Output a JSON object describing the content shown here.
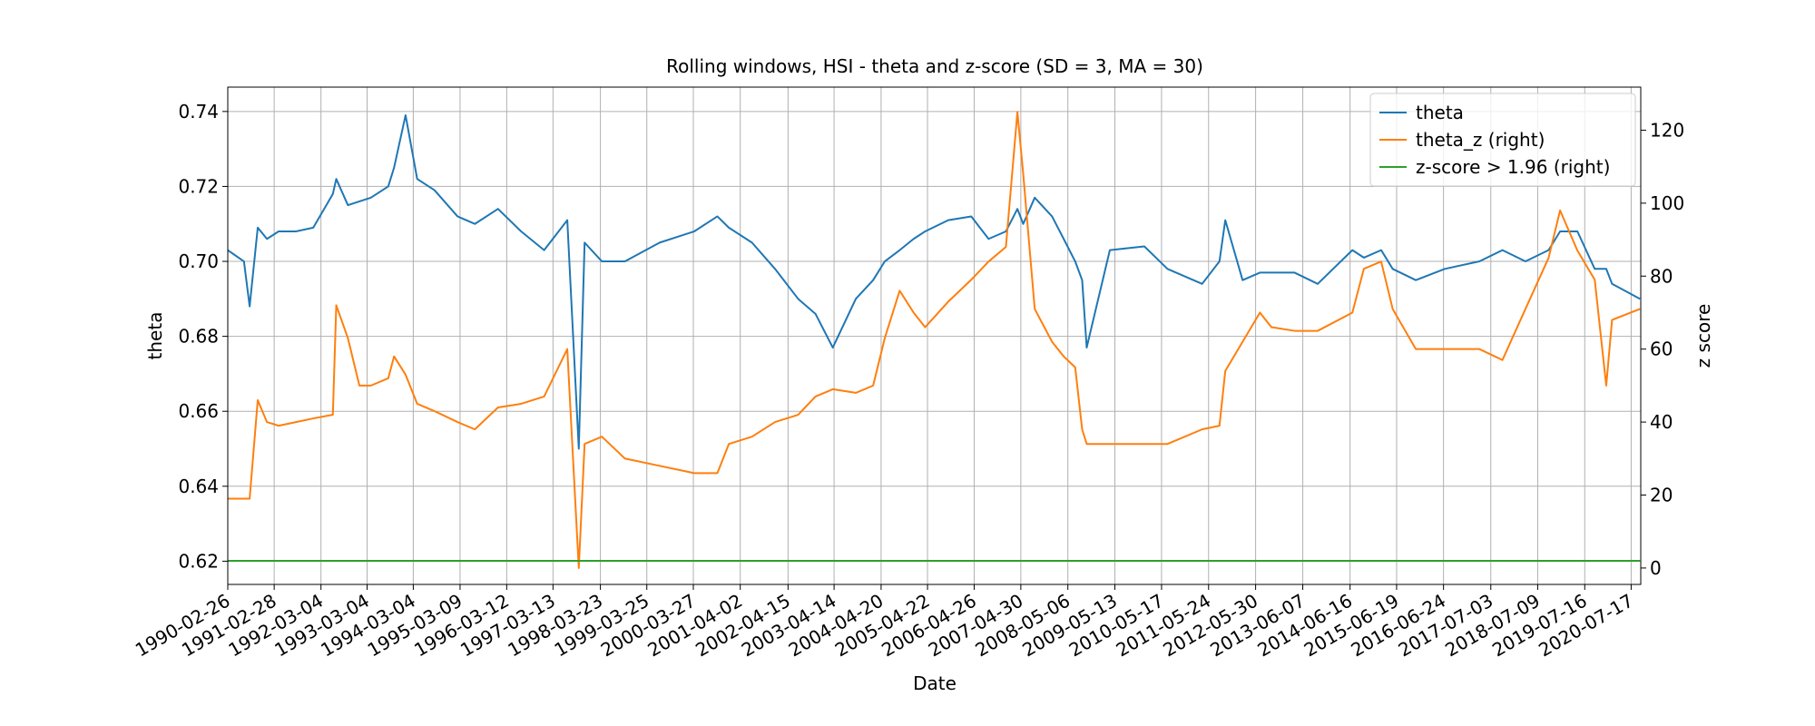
{
  "chart_data": {
    "type": "line",
    "title": "Rolling windows, HSI - theta and z-score (SD = 3, MA = 30)",
    "x_label": "Date",
    "y_label": "theta",
    "y2_label": "z score",
    "x": [
      "1990-02-26",
      "1990-07-04",
      "1990-08-18",
      "1990-10-21",
      "1991-01-02",
      "1991-04-04",
      "1991-08-19",
      "1992-01-03",
      "1992-06-06",
      "1992-07-03",
      "1992-10-03",
      "1993-01-02",
      "1993-04-03",
      "1993-08-18",
      "1993-10-03",
      "1994-01-02",
      "1994-04-04",
      "1994-08-19",
      "1995-02-17",
      "1995-07-04",
      "1996-01-03",
      "1996-07-04",
      "1997-01-02",
      "1997-07-04",
      "1997-10-03",
      "1997-11-18",
      "1998-04-04",
      "1998-10-03",
      "1999-07-04",
      "2000-04-03",
      "2000-10-03",
      "2001-01-02",
      "2001-07-04",
      "2002-01-02",
      "2002-07-04",
      "2002-11-18",
      "2003-04-04",
      "2003-10-03",
      "2004-02-17",
      "2004-05-19",
      "2004-09-14",
      "2005-01-02",
      "2005-04-03",
      "2005-10-03",
      "2006-04-03",
      "2006-08-18",
      "2007-01-02",
      "2007-04-03",
      "2007-05-19",
      "2007-08-18",
      "2008-01-02",
      "2008-04-03",
      "2008-07-03",
      "2008-08-27",
      "2008-10-02",
      "2009-04-03",
      "2010-01-01",
      "2010-07-03",
      "2011-04-03",
      "2011-08-18",
      "2011-10-03",
      "2012-02-17",
      "2012-07-03",
      "2012-10-02",
      "2013-04-03",
      "2013-10-03",
      "2014-07-04",
      "2014-10-03",
      "2015-02-17",
      "2015-05-19",
      "2015-11-18",
      "2016-07-04",
      "2017-04-04",
      "2017-10-03",
      "2018-04-03",
      "2018-10-03",
      "2019-01-02",
      "2019-05-19",
      "2019-10-03",
      "2020-01-02",
      "2020-02-17",
      "2020-09-25"
    ],
    "series": [
      {
        "name": "theta",
        "color": "#1f77b4",
        "axis": "y",
        "values": [
          0.703,
          0.7,
          0.688,
          0.709,
          0.706,
          0.708,
          0.708,
          0.709,
          0.718,
          0.722,
          0.715,
          0.716,
          0.717,
          0.72,
          0.725,
          0.739,
          0.722,
          0.719,
          0.712,
          0.71,
          0.714,
          0.708,
          0.703,
          0.711,
          0.65,
          0.705,
          0.7,
          0.7,
          0.705,
          0.708,
          0.712,
          0.709,
          0.705,
          0.698,
          0.69,
          0.686,
          0.677,
          0.69,
          0.695,
          0.7,
          0.703,
          0.706,
          0.708,
          0.711,
          0.712,
          0.706,
          0.708,
          0.714,
          0.71,
          0.717,
          0.712,
          0.706,
          0.7,
          0.695,
          0.677,
          0.703,
          0.704,
          0.698,
          0.694,
          0.7,
          0.711,
          0.695,
          0.697,
          0.697,
          0.697,
          0.694,
          0.703,
          0.701,
          0.703,
          0.698,
          0.695,
          0.698,
          0.7,
          0.703,
          0.7,
          0.703,
          0.708,
          0.708,
          0.698,
          0.698,
          0.694,
          0.69
        ]
      },
      {
        "name": "theta_z (right)",
        "color": "#ff7f0e",
        "axis": "y2",
        "values": [
          19,
          19,
          19,
          46,
          40,
          39,
          40,
          41,
          42,
          72,
          63,
          50,
          50,
          52,
          58,
          53,
          45,
          43,
          40,
          38,
          44,
          45,
          47,
          60,
          0,
          34,
          36,
          30,
          28,
          26,
          26,
          34,
          36,
          40,
          42,
          47,
          49,
          48,
          50,
          63,
          76,
          70,
          66,
          73,
          79,
          84,
          88,
          125,
          108,
          71,
          62,
          58,
          55,
          38,
          34,
          34,
          34,
          34,
          38,
          39,
          54,
          62,
          70,
          66,
          65,
          65,
          70,
          82,
          84,
          71,
          60,
          60,
          60,
          57,
          71,
          85,
          98,
          87,
          79,
          50,
          68,
          71
        ]
      },
      {
        "name": "z-score > 1.96 (right)",
        "color": "#2ca02c",
        "axis": "y2",
        "values": [
          1.96,
          1.96,
          1.96,
          1.96,
          1.96,
          1.96,
          1.96,
          1.96,
          1.96,
          1.96,
          1.96,
          1.96,
          1.96,
          1.96,
          1.96,
          1.96,
          1.96,
          1.96,
          1.96,
          1.96,
          1.96,
          1.96,
          1.96,
          1.96,
          1.96,
          1.96,
          1.96,
          1.96,
          1.96,
          1.96,
          1.96,
          1.96,
          1.96,
          1.96,
          1.96,
          1.96,
          1.96,
          1.96,
          1.96,
          1.96,
          1.96,
          1.96,
          1.96,
          1.96,
          1.96,
          1.96,
          1.96,
          1.96,
          1.96,
          1.96,
          1.96,
          1.96,
          1.96,
          1.96,
          1.96,
          1.96,
          1.96,
          1.96,
          1.96,
          1.96,
          1.96,
          1.96,
          1.96,
          1.96,
          1.96,
          1.96,
          1.96,
          1.96,
          1.96,
          1.96,
          1.96,
          1.96,
          1.96,
          1.96,
          1.96,
          1.96,
          1.96,
          1.96,
          1.96,
          1.96,
          1.96,
          1.96
        ]
      }
    ],
    "xlim": [
      "1990-02-26",
      "2020-10-01"
    ],
    "xticks": [
      "1990-02-26",
      "1991-02-28",
      "1992-03-04",
      "1993-03-04",
      "1994-03-04",
      "1995-03-09",
      "1996-03-12",
      "1997-03-13",
      "1998-03-23",
      "1999-03-25",
      "2000-03-27",
      "2001-04-02",
      "2002-04-15",
      "2003-04-14",
      "2004-04-20",
      "2005-04-22",
      "2006-04-26",
      "2007-04-30",
      "2008-05-06",
      "2009-05-13",
      "2010-05-17",
      "2011-05-24",
      "2012-05-30",
      "2013-06-07",
      "2014-06-16",
      "2015-06-19",
      "2016-06-24",
      "2017-07-03",
      "2018-07-09",
      "2019-07-16",
      "2020-07-17"
    ],
    "ylim": [
      0.6138,
      0.7465
    ],
    "yticks": [
      0.62,
      0.64,
      0.66,
      0.68,
      {
        "value": 0.7,
        "label": "0.70"
      },
      0.72,
      0.74
    ],
    "y2lim": [
      -4.5,
      131.8
    ],
    "y2ticks": [
      0,
      20,
      40,
      60,
      80,
      100,
      120
    ],
    "grid": true,
    "legend": "upper right"
  }
}
